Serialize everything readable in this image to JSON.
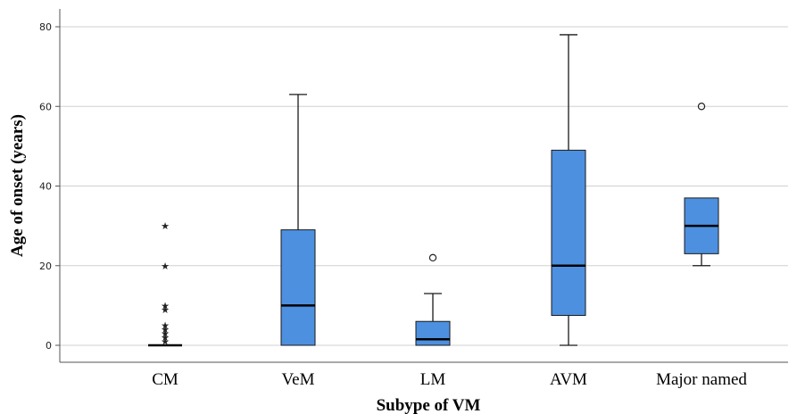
{
  "chart_data": {
    "type": "box",
    "xlabel": "Subype of VM",
    "ylabel": "Age of onset (years)",
    "ylim": [
      -4,
      84
    ],
    "yticks": [
      0,
      20,
      40,
      60,
      80
    ],
    "grid": true,
    "categories": [
      "CM",
      "VeM",
      "LM",
      "AVM",
      "Major named"
    ],
    "boxes": [
      {
        "category": "CM",
        "whisker_low": 0,
        "q1": 0,
        "median": 0,
        "q3": 0,
        "whisker_high": 0,
        "outliers": [],
        "extremes": [
          30,
          20,
          10,
          9,
          5,
          4,
          3,
          2,
          1
        ]
      },
      {
        "category": "VeM",
        "whisker_low": 0,
        "q1": 0,
        "median": 10,
        "q3": 29,
        "whisker_high": 63,
        "outliers": [],
        "extremes": []
      },
      {
        "category": "LM",
        "whisker_low": 0,
        "q1": 0,
        "median": 1.5,
        "q3": 6,
        "whisker_high": 13,
        "outliers": [
          22
        ],
        "extremes": []
      },
      {
        "category": "AVM",
        "whisker_low": 0,
        "q1": 7.5,
        "median": 20,
        "q3": 49,
        "whisker_high": 78,
        "outliers": [],
        "extremes": []
      },
      {
        "category": "Major named",
        "whisker_low": 20,
        "q1": 23,
        "median": 30,
        "q3": 37,
        "whisker_high": 37,
        "outliers": [
          60
        ],
        "extremes": []
      }
    ],
    "colors": {
      "box": "#4d90e0",
      "median": "#000000",
      "grid": "#d0d0d0"
    }
  }
}
